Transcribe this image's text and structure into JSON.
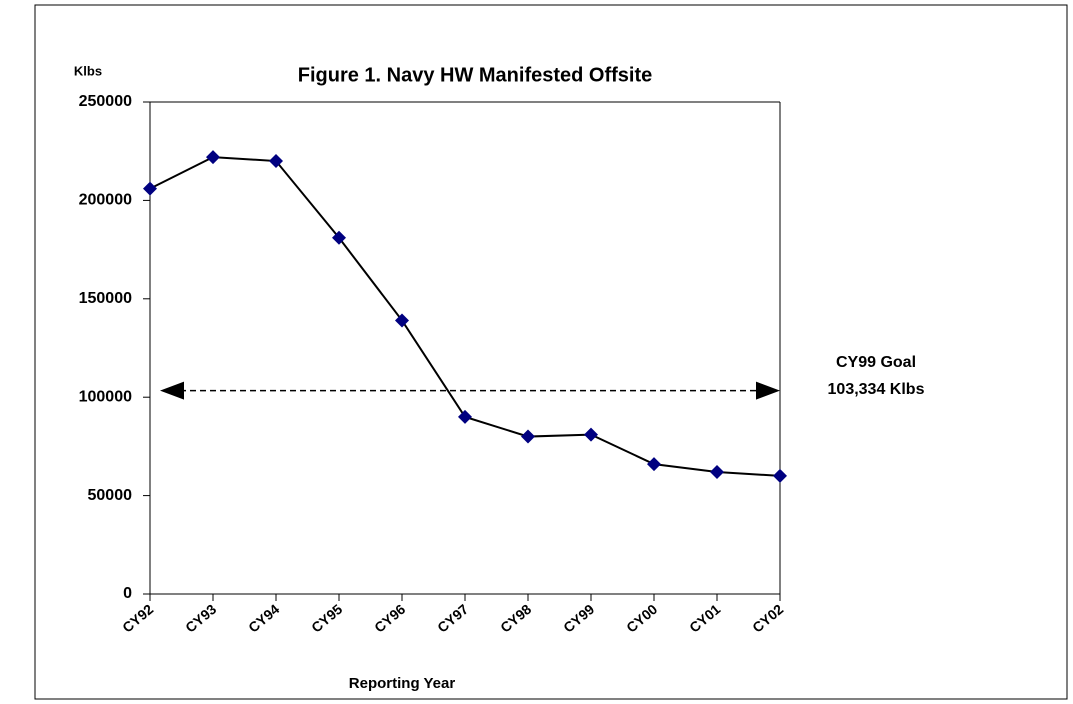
{
  "chart_data": {
    "type": "line",
    "title": "Figure 1.  Navy HW Manifested Offsite",
    "y_label": "Klbs",
    "x_label": "Reporting Year",
    "categories": [
      "CY92",
      "CY93",
      "CY94",
      "CY95",
      "CY96",
      "CY97",
      "CY98",
      "CY99",
      "CY00",
      "CY01",
      "CY02"
    ],
    "values": [
      206000,
      222000,
      220000,
      181000,
      139000,
      90000,
      80000,
      81000,
      66000,
      62000,
      60000
    ],
    "color": "#000080",
    "line_color": "#000000",
    "ylim": [
      0,
      250000
    ],
    "yticks": [
      0,
      50000,
      100000,
      150000,
      200000,
      250000
    ],
    "grid": false,
    "goal": {
      "value": 103334,
      "labels": [
        "CY99 Goal",
        "103,334 Klbs"
      ]
    }
  }
}
